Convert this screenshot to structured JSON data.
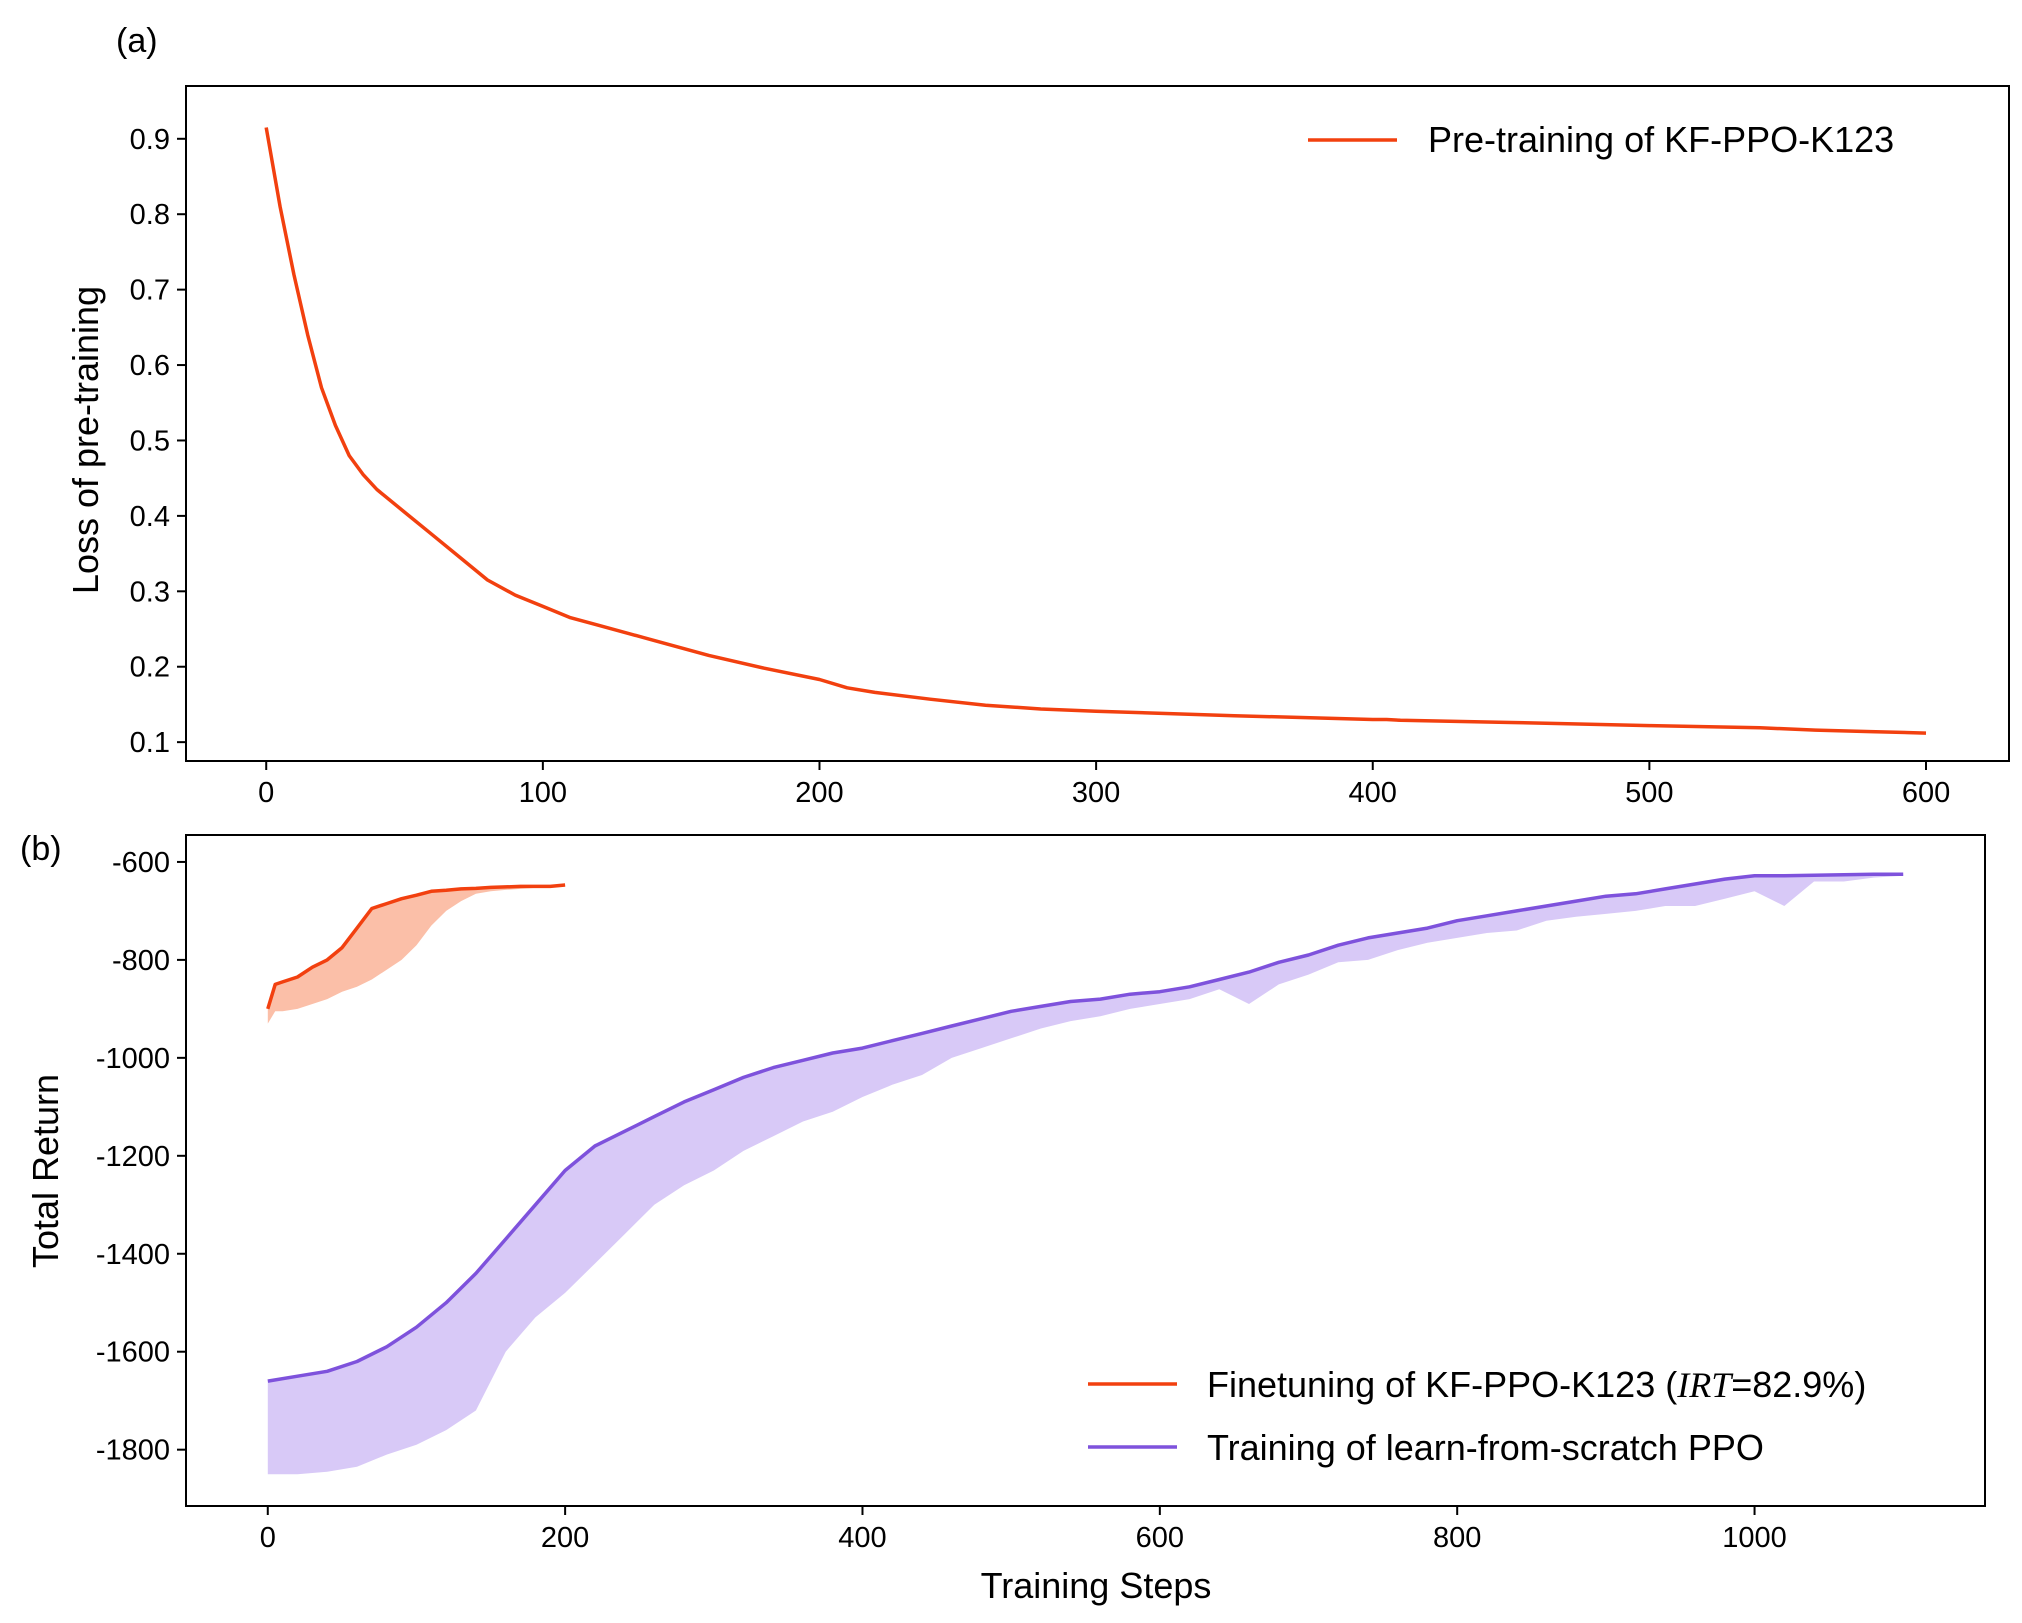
{
  "chart_data": [
    {
      "panel_label": "(a)",
      "type": "line",
      "xlabel": "",
      "ylabel": "Loss of pre-training",
      "xlim": [
        -29,
        630
      ],
      "ylim": [
        0.075,
        0.97
      ],
      "x_ticks": [
        0,
        100,
        200,
        300,
        400,
        500,
        600
      ],
      "y_ticks": [
        0.1,
        0.2,
        0.3,
        0.4,
        0.5,
        0.6,
        0.7,
        0.8,
        0.9
      ],
      "x_tick_labels": [
        "0",
        "100",
        "200",
        "300",
        "400",
        "500",
        "600"
      ],
      "y_tick_labels": [
        "0.1",
        "0.2",
        "0.3",
        "0.4",
        "0.5",
        "0.6",
        "0.7",
        "0.8",
        "0.9"
      ],
      "grid": false,
      "legend_position": "top-right",
      "series": [
        {
          "name": "Pre-training of KF-PPO-K123",
          "color": "#f2400f",
          "x": [
            0,
            5,
            10,
            15,
            20,
            25,
            30,
            35,
            40,
            50,
            60,
            70,
            80,
            90,
            100,
            110,
            120,
            140,
            160,
            180,
            200,
            210,
            220,
            240,
            260,
            280,
            300,
            350,
            400,
            405,
            410,
            450,
            500,
            540,
            560,
            580,
            600
          ],
          "values": [
            0.915,
            0.81,
            0.72,
            0.64,
            0.57,
            0.52,
            0.48,
            0.455,
            0.435,
            0.405,
            0.375,
            0.345,
            0.315,
            0.295,
            0.28,
            0.265,
            0.255,
            0.235,
            0.215,
            0.198,
            0.183,
            0.172,
            0.166,
            0.157,
            0.149,
            0.144,
            0.141,
            0.135,
            0.13,
            0.13,
            0.129,
            0.126,
            0.122,
            0.119,
            0.116,
            0.114,
            0.112
          ]
        }
      ]
    },
    {
      "panel_label": "(b)",
      "type": "line",
      "xlabel": "Training Steps",
      "ylabel": "Total Return",
      "xlim": [
        -55,
        1155
      ],
      "ylim": [
        -1915,
        -545
      ],
      "x_ticks": [
        0,
        200,
        400,
        600,
        800,
        1000
      ],
      "y_ticks": [
        -600,
        -800,
        -1000,
        -1200,
        -1400,
        -1600,
        -1800
      ],
      "x_tick_labels": [
        "0",
        "200",
        "400",
        "600",
        "800",
        "1000"
      ],
      "y_tick_labels": [
        "-600",
        "-800",
        "-1000",
        "-1200",
        "-1400",
        "-1600",
        "-1800"
      ],
      "grid": false,
      "legend_position": "bottom-right",
      "series": [
        {
          "name": "Finetuning of KF-PPO-K123 (IRT=82.9%)",
          "color": "#f2400f",
          "band_color": "#fbbfa8",
          "x": [
            0,
            5,
            10,
            20,
            30,
            40,
            50,
            60,
            70,
            80,
            90,
            100,
            110,
            120,
            130,
            140,
            150,
            160,
            170,
            180,
            190,
            200
          ],
          "values": [
            -900,
            -850,
            -845,
            -835,
            -815,
            -800,
            -775,
            -735,
            -695,
            -685,
            -675,
            -668,
            -660,
            -658,
            -655,
            -654,
            -652,
            -651,
            -650,
            -650,
            -650,
            -647
          ],
          "band_lower": [
            -930,
            -905,
            -905,
            -900,
            -890,
            -880,
            -865,
            -855,
            -840,
            -820,
            -800,
            -770,
            -730,
            -700,
            -680,
            -665,
            -660,
            -657,
            -655,
            -653,
            -651,
            -649
          ]
        },
        {
          "name": "Training of learn-from-scratch PPO",
          "color": "#7e52dc",
          "band_color": "#d8c9f7",
          "x": [
            0,
            20,
            40,
            60,
            80,
            100,
            120,
            140,
            160,
            180,
            200,
            220,
            240,
            260,
            280,
            300,
            320,
            340,
            360,
            380,
            400,
            420,
            440,
            460,
            480,
            500,
            520,
            540,
            560,
            580,
            600,
            620,
            640,
            660,
            680,
            700,
            720,
            740,
            760,
            780,
            800,
            820,
            840,
            860,
            880,
            900,
            920,
            940,
            960,
            980,
            1000,
            1020,
            1040,
            1060,
            1080,
            1100
          ],
          "values": [
            -1660,
            -1650,
            -1640,
            -1620,
            -1590,
            -1550,
            -1500,
            -1440,
            -1370,
            -1300,
            -1230,
            -1180,
            -1150,
            -1120,
            -1090,
            -1065,
            -1040,
            -1020,
            -1005,
            -990,
            -980,
            -965,
            -950,
            -935,
            -920,
            -905,
            -895,
            -885,
            -880,
            -870,
            -865,
            -855,
            -840,
            -825,
            -805,
            -790,
            -770,
            -755,
            -745,
            -735,
            -720,
            -710,
            -700,
            -690,
            -680,
            -670,
            -665,
            -655,
            -645,
            -635,
            -628,
            -628,
            -627,
            -626,
            -625,
            -625
          ],
          "band_lower": [
            -1850,
            -1850,
            -1845,
            -1835,
            -1810,
            -1790,
            -1760,
            -1720,
            -1600,
            -1530,
            -1480,
            -1420,
            -1360,
            -1300,
            -1260,
            -1230,
            -1190,
            -1160,
            -1130,
            -1110,
            -1080,
            -1055,
            -1035,
            -1000,
            -980,
            -960,
            -940,
            -925,
            -915,
            -900,
            -890,
            -880,
            -860,
            -890,
            -850,
            -830,
            -805,
            -800,
            -780,
            -765,
            -755,
            -745,
            -740,
            -720,
            -712,
            -706,
            -700,
            -690,
            -690,
            -675,
            -660,
            -690,
            -640,
            -640,
            -632,
            -628
          ]
        }
      ]
    }
  ],
  "text": {
    "panel_a_label": "(a)",
    "panel_b_label": "(b)",
    "a_ylabel": "Loss of pre-training",
    "b_ylabel": "Total Return",
    "b_xlabel": "Training Steps",
    "legend_a_1": "Pre-training of KF-PPO-K123",
    "legend_b_1_prefix": "Finetuning of KF-PPO-K123 (",
    "legend_b_1_irt": "IRT",
    "legend_b_1_suffix": "=82.9%)",
    "legend_b_2": "Training of learn-from-scratch PPO"
  }
}
